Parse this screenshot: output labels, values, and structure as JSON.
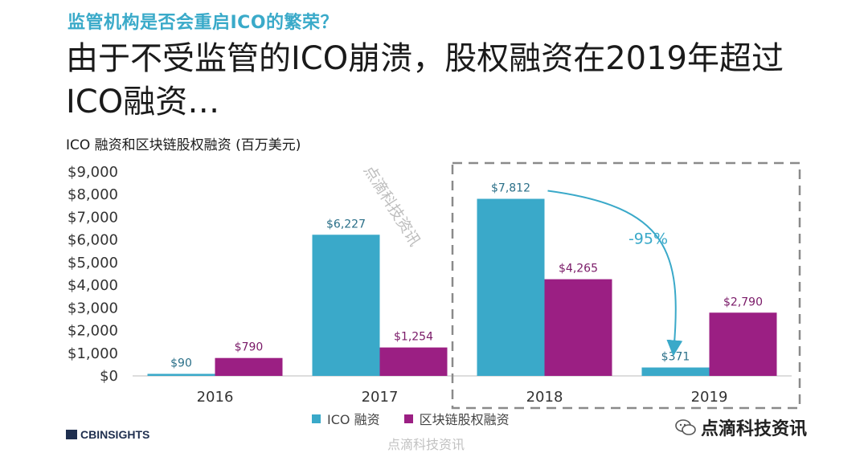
{
  "header": {
    "subtitle": "监管机构是否会重启ICO的繁荣？",
    "headline": "由于不受监管的ICO崩溃，股权融资在2019年超过ICO融资…",
    "chart_caption": "ICO 融资和区块链股权融资 (百万美元)"
  },
  "colors": {
    "ico": "#3aa9c9",
    "equity": "#9b1f83",
    "arrow": "#3aa9c9",
    "highlight_box": "#8a8a8a"
  },
  "chart_data": {
    "type": "bar",
    "categories": [
      "2016",
      "2017",
      "2018",
      "2019"
    ],
    "series": [
      {
        "name": "ICO 融资",
        "values": [
          90,
          6227,
          7812,
          371
        ],
        "labels": [
          "$90",
          "$6,227",
          "$7,812",
          "$371"
        ]
      },
      {
        "name": "区块链股权融资",
        "values": [
          790,
          1254,
          4265,
          2790
        ],
        "labels": [
          "$790",
          "$1,254",
          "$4,265",
          "$2,790"
        ]
      }
    ],
    "ylim": [
      0,
      9000
    ],
    "yticks": [
      0,
      1000,
      2000,
      3000,
      4000,
      5000,
      6000,
      7000,
      8000,
      9000
    ],
    "ytick_labels": [
      "$0",
      "$1,000",
      "$2,000",
      "$3,000",
      "$4,000",
      "$5,000",
      "$6,000",
      "$7,000",
      "$8,000",
      "$9,000"
    ],
    "grid": false,
    "legend_placement": "bottom-center",
    "annotation": {
      "text": "-95%",
      "from": "2018",
      "to": "2019",
      "series": "ICO 融资"
    },
    "highlight_categories": [
      "2018",
      "2019"
    ]
  },
  "legend": {
    "ico": "ICO 融资",
    "equity": "区块链股权融资"
  },
  "footer": {
    "logo_text": "CBINSIGHTS",
    "brand_text": "点滴科技资讯",
    "watermark": "点滴科技资讯"
  }
}
